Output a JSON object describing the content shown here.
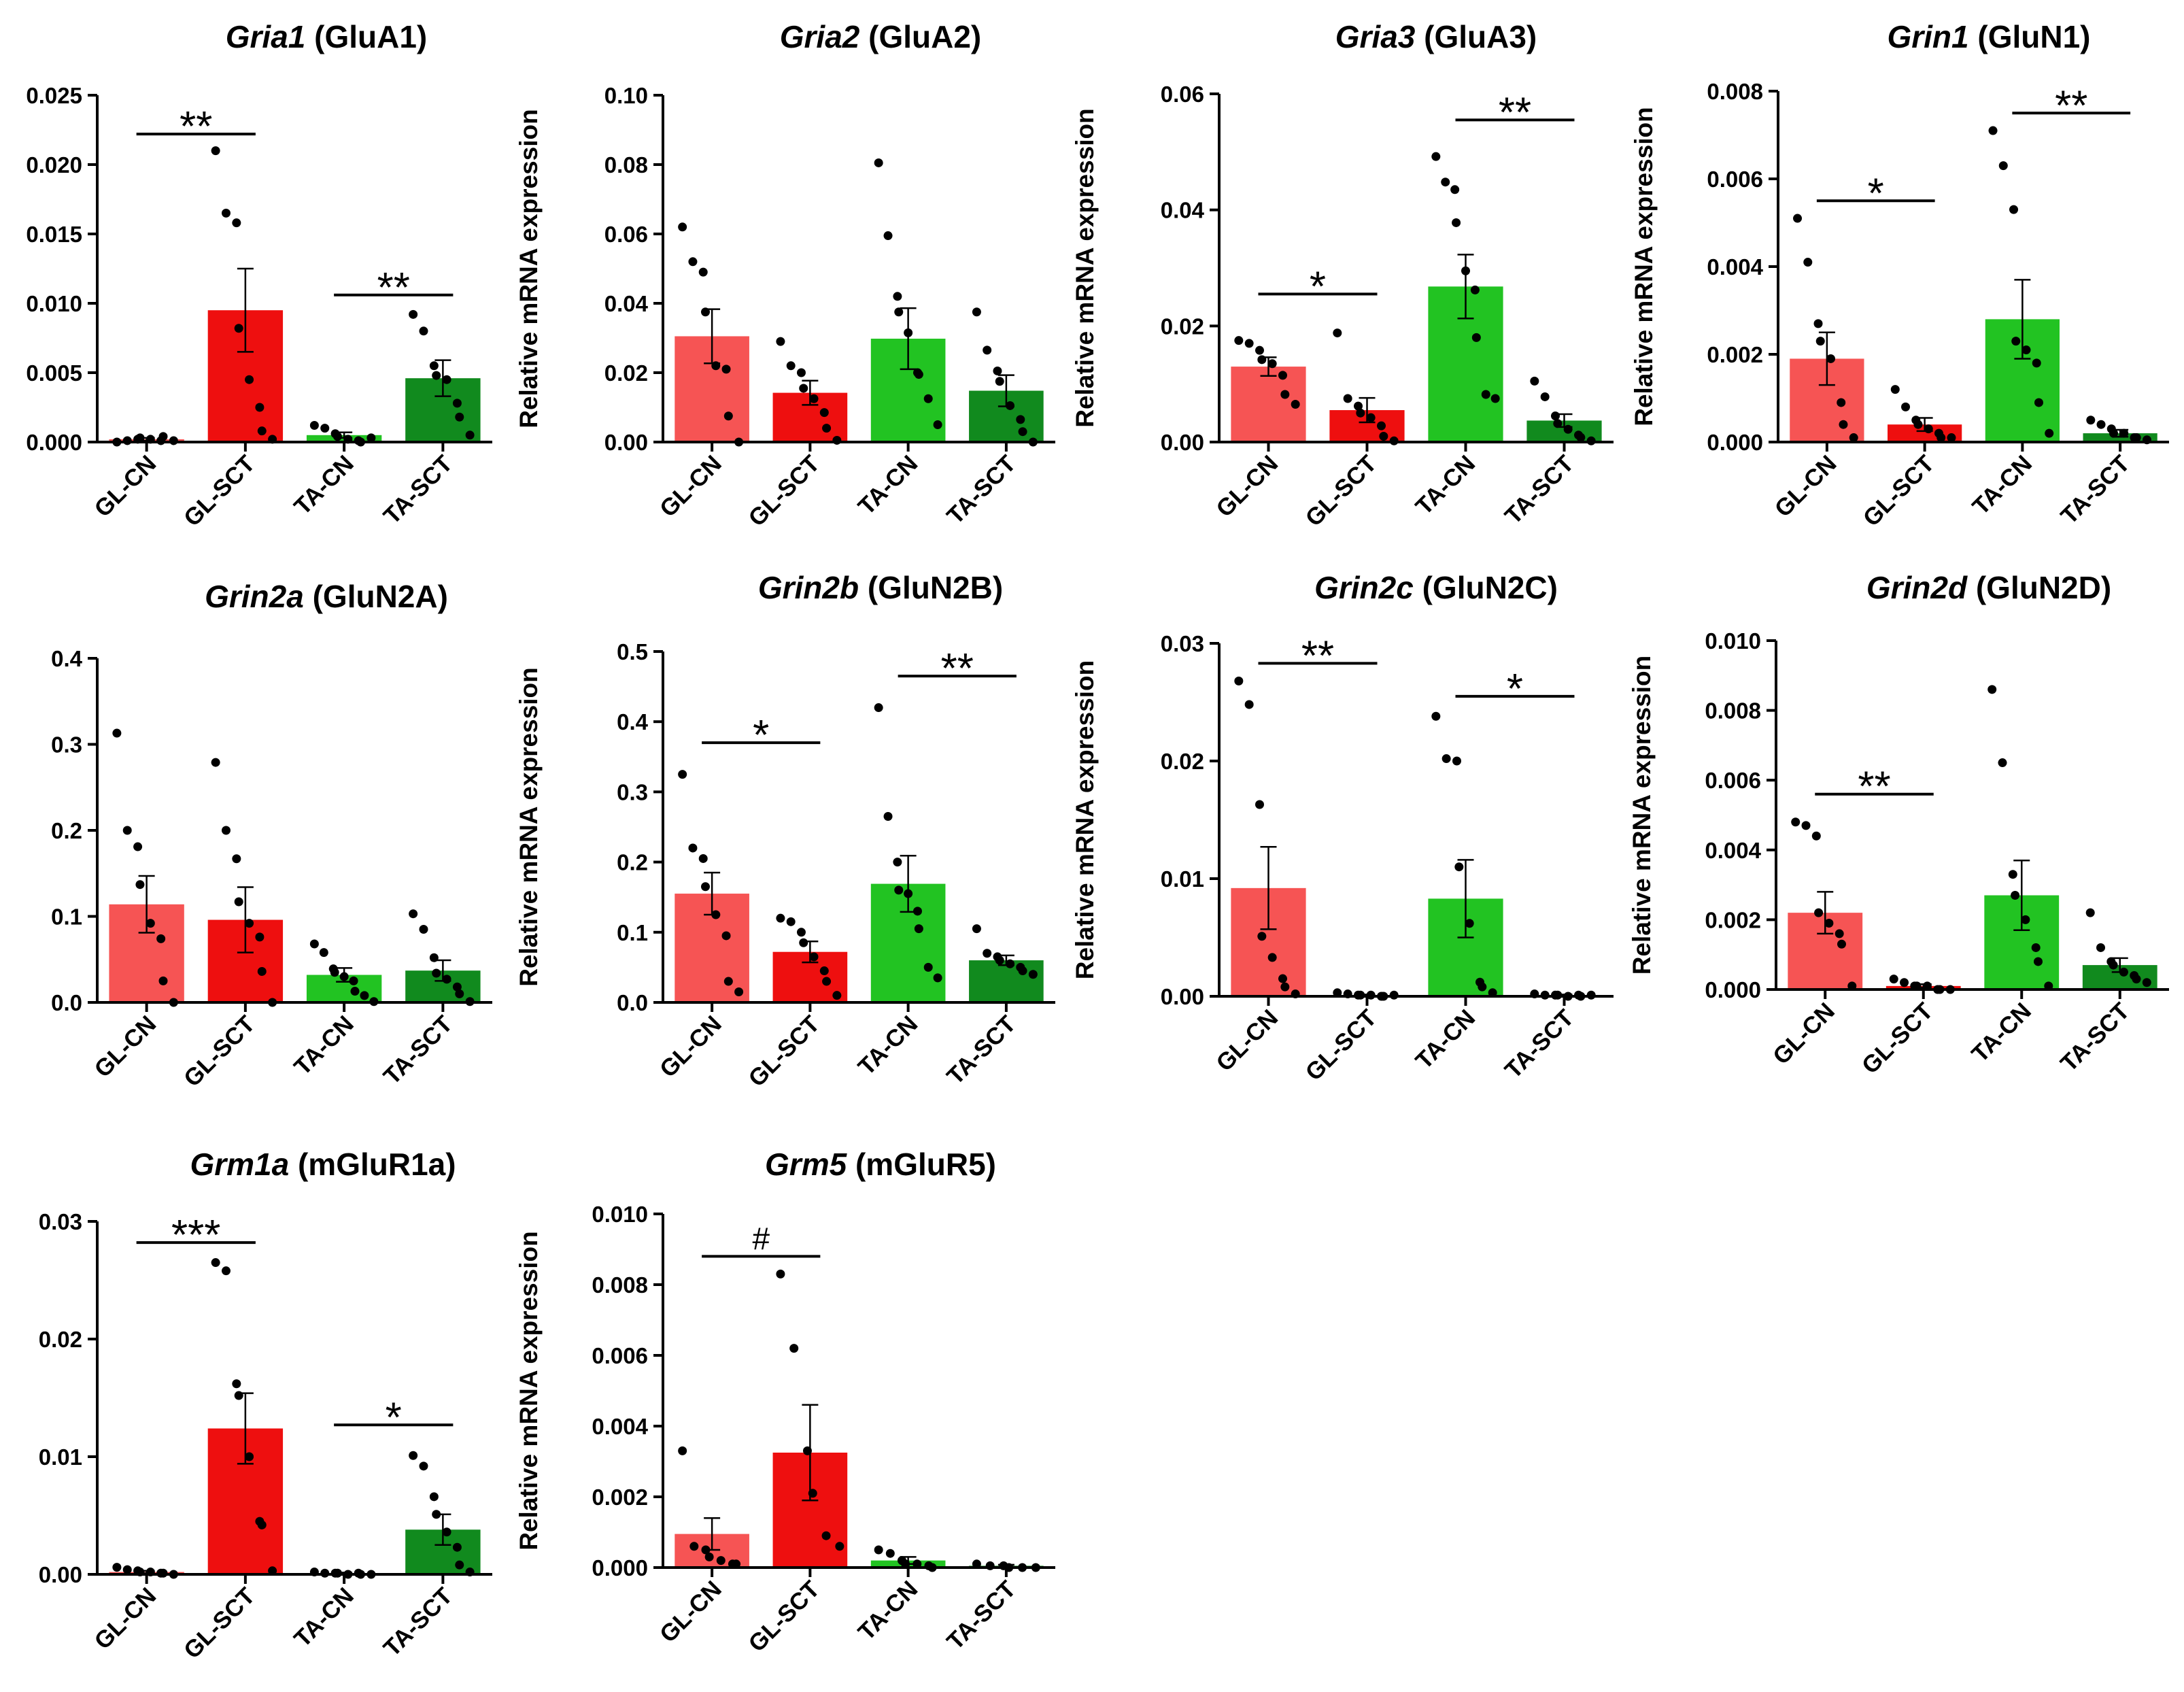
{
  "ylabel": "Relative mRNA expression",
  "colors": {
    "GL-CN": "#f65454",
    "GL-SCT": "#ee0f0f",
    "TA-CN": "#22c322",
    "TA-SCT": "#118a1e",
    "axis": "#000000"
  },
  "chart_data": [
    {
      "type": "bar",
      "gene": "Gria1",
      "protein": "(GluA1)",
      "categories": [
        "GL-CN",
        "GL-SCT",
        "TA-CN",
        "TA-SCT"
      ],
      "values": [
        0.0002,
        0.0095,
        0.0005,
        0.0046
      ],
      "errors": [
        0.0001,
        0.003,
        0.0002,
        0.0013
      ],
      "points": [
        [
          0,
          0.0001,
          0.0002,
          0.0003,
          0.0002,
          0.0001,
          0.0004,
          0.0001
        ],
        [
          0.021,
          0.0165,
          0.0158,
          0.0082,
          0.0045,
          0.0025,
          0.0008,
          0.0002
        ],
        [
          0.0012,
          0.001,
          0.0006,
          0.0004,
          0.0002,
          0.0001,
          0,
          0.0003
        ],
        [
          0.0092,
          0.008,
          0.0055,
          0.0048,
          0.0045,
          0.0028,
          0.0018,
          0.0005
        ]
      ],
      "ylim": [
        0,
        0.025
      ],
      "yticks": [
        "0.000",
        "0.005",
        "0.010",
        "0.015",
        "0.020",
        "0.025"
      ],
      "sig": [
        {
          "from": 0,
          "to": 1,
          "y": 0.0222,
          "label": "**"
        },
        {
          "from": 2,
          "to": 3,
          "y": 0.0106,
          "label": "**"
        }
      ]
    },
    {
      "type": "bar",
      "gene": "Gria2",
      "protein": "(GluA2)",
      "categories": [
        "GL-CN",
        "GL-SCT",
        "TA-CN",
        "TA-SCT"
      ],
      "values": [
        0.0305,
        0.0142,
        0.0298,
        0.0148
      ],
      "errors": [
        0.0078,
        0.0035,
        0.0088,
        0.0045
      ],
      "points": [
        [
          0.062,
          0.052,
          0.049,
          0.0375,
          0.022,
          0.021,
          0.0075,
          0
        ],
        [
          0.029,
          0.022,
          0.02,
          0.0155,
          0.0125,
          0.0085,
          0.004,
          0.0005
        ],
        [
          0.0805,
          0.0595,
          0.042,
          0.0375,
          0.0315,
          0.02,
          0.0195,
          0.0125,
          0.005
        ],
        [
          0.0375,
          0.0265,
          0.0205,
          0.0175,
          0.0105,
          0.0065,
          0.003,
          0
        ]
      ],
      "ylim": [
        0,
        0.1
      ],
      "yticks": [
        "0.00",
        "0.02",
        "0.04",
        "0.06",
        "0.08",
        "0.10"
      ],
      "sig": []
    },
    {
      "type": "bar",
      "gene": "Gria3",
      "protein": "(GluA3)",
      "categories": [
        "GL-CN",
        "GL-SCT",
        "TA-CN",
        "TA-SCT"
      ],
      "values": [
        0.013,
        0.0055,
        0.0268,
        0.0037
      ],
      "errors": [
        0.0016,
        0.0021,
        0.0055,
        0.0011
      ],
      "points": [
        [
          0.0175,
          0.017,
          0.0158,
          0.0142,
          0.0135,
          0.0115,
          0.0082,
          0.0065
        ],
        [
          0.0188,
          0.0075,
          0.0062,
          0.005,
          0.0042,
          0.0028,
          0.001,
          0.0002
        ],
        [
          0.0492,
          0.0448,
          0.0435,
          0.0378,
          0.0295,
          0.0262,
          0.018,
          0.0082,
          0.0075
        ],
        [
          0.0105,
          0.0078,
          0.0045,
          0.0032,
          0.0022,
          0.0012,
          0.0008,
          0.0002
        ]
      ],
      "ylim": [
        0,
        0.06
      ],
      "yticks": [
        "0.00",
        "0.02",
        "0.04",
        "0.06"
      ],
      "sig": [
        {
          "from": 0,
          "to": 1,
          "y": 0.0255,
          "label": "*"
        },
        {
          "from": 2,
          "to": 3,
          "y": 0.0555,
          "label": "**"
        }
      ]
    },
    {
      "type": "bar",
      "gene": "Grin1",
      "protein": "(GluN1)",
      "categories": [
        "GL-CN",
        "GL-SCT",
        "TA-CN",
        "TA-SCT"
      ],
      "values": [
        0.0019,
        0.0004,
        0.0028,
        0.0002
      ],
      "errors": [
        0.0006,
        0.00015,
        0.0009,
        8e-05
      ],
      "points": [
        [
          0.0051,
          0.0041,
          0.0027,
          0.0023,
          0.0019,
          0.0009,
          0.0004,
          0.0001
        ],
        [
          0.0012,
          0.0008,
          0.0005,
          0.0004,
          0.0003,
          0.0002,
          0.0001,
          0.0001
        ],
        [
          0.0071,
          0.0063,
          0.0053,
          0.0023,
          0.0021,
          0.0018,
          0.0009,
          0.0002
        ],
        [
          0.0005,
          0.0004,
          0.0003,
          0.0002,
          0.0002,
          0.0001,
          0.0001,
          5e-05
        ]
      ],
      "ylim": [
        0,
        0.008
      ],
      "yticks": [
        "0.000",
        "0.002",
        "0.004",
        "0.006",
        "0.008"
      ],
      "sig": [
        {
          "from": 0,
          "to": 1,
          "y": 0.0055,
          "label": "*"
        },
        {
          "from": 2,
          "to": 3,
          "y": 0.0075,
          "label": "**"
        }
      ]
    },
    {
      "type": "bar",
      "gene": "Grin2a",
      "protein": "(GluN2A)",
      "categories": [
        "GL-CN",
        "GL-SCT",
        "TA-CN",
        "TA-SCT"
      ],
      "values": [
        0.114,
        0.096,
        0.032,
        0.037
      ],
      "errors": [
        0.033,
        0.038,
        0.008,
        0.012
      ],
      "points": [
        [
          0.313,
          0.2,
          0.181,
          0.137,
          0.092,
          0.074,
          0.025,
          0
        ],
        [
          0.279,
          0.2,
          0.167,
          0.117,
          0.092,
          0.076,
          0.036,
          0
        ],
        [
          0.068,
          0.058,
          0.039,
          0.035,
          0.03,
          0.025,
          0.013,
          0.008,
          0.001
        ],
        [
          0.103,
          0.085,
          0.052,
          0.034,
          0.027,
          0.018,
          0.01,
          0.001
        ]
      ],
      "ylim": [
        0,
        0.4
      ],
      "yticks": [
        "0.0",
        "0.1",
        "0.2",
        "0.3",
        "0.4"
      ],
      "sig": []
    },
    {
      "type": "bar",
      "gene": "Grin2b",
      "protein": "(GluN2B)",
      "categories": [
        "GL-CN",
        "GL-SCT",
        "TA-CN",
        "TA-SCT"
      ],
      "values": [
        0.155,
        0.072,
        0.169,
        0.06
      ],
      "errors": [
        0.03,
        0.015,
        0.04,
        0.007
      ],
      "points": [
        [
          0.325,
          0.22,
          0.205,
          0.165,
          0.125,
          0.095,
          0.03,
          0.015
        ],
        [
          0.12,
          0.115,
          0.1,
          0.085,
          0.065,
          0.045,
          0.03,
          0.01
        ],
        [
          0.42,
          0.265,
          0.2,
          0.16,
          0.155,
          0.13,
          0.105,
          0.05,
          0.035
        ],
        [
          0.105,
          0.07,
          0.065,
          0.06,
          0.055,
          0.05,
          0.045,
          0.04
        ]
      ],
      "ylim": [
        0,
        0.5
      ],
      "yticks": [
        "0.0",
        "0.1",
        "0.2",
        "0.3",
        "0.4",
        "0.5"
      ],
      "sig": [
        {
          "from": 0,
          "to": 1,
          "y": 0.37,
          "label": "*"
        },
        {
          "from": 2,
          "to": 3,
          "y": 0.465,
          "label": "**"
        }
      ]
    },
    {
      "type": "bar",
      "gene": "Grin2c",
      "protein": "(GluN2C)",
      "categories": [
        "GL-CN",
        "GL-SCT",
        "TA-CN",
        "TA-SCT"
      ],
      "values": [
        0.0092,
        0.0001,
        0.0083,
        0.0001
      ],
      "errors": [
        0.0035,
        5e-05,
        0.0033,
        5e-05
      ],
      "points": [
        [
          0.0268,
          0.0248,
          0.0163,
          0.0051,
          0.0033,
          0.0015,
          0.0008,
          0.0002
        ],
        [
          0.0003,
          0.0002,
          0.0001,
          0.0001,
          0.0001,
          0,
          0,
          0.0001
        ],
        [
          0.0238,
          0.0202,
          0.02,
          0.011,
          0.0062,
          0.0012,
          0.0008,
          0.0003
        ],
        [
          0.0002,
          0.0001,
          0.0001,
          0.0001,
          0,
          0.0001,
          0,
          0.0001
        ]
      ],
      "ylim": [
        0,
        0.03
      ],
      "yticks": [
        "0.00",
        "0.01",
        "0.02",
        "0.03"
      ],
      "sig": [
        {
          "from": 0,
          "to": 1,
          "y": 0.0283,
          "label": "**"
        },
        {
          "from": 2,
          "to": 3,
          "y": 0.0255,
          "label": "*"
        }
      ]
    },
    {
      "type": "bar",
      "gene": "Grin2d",
      "protein": "(GluN2D)",
      "categories": [
        "GL-CN",
        "GL-SCT",
        "TA-CN",
        "TA-SCT"
      ],
      "values": [
        0.0022,
        0.0001,
        0.0027,
        0.0007
      ],
      "errors": [
        0.0006,
        5e-05,
        0.001,
        0.0002
      ],
      "points": [
        [
          0.0048,
          0.0047,
          0.0044,
          0.0022,
          0.0019,
          0.0016,
          0.0013,
          0.0001
        ],
        [
          0.0003,
          0.0002,
          0.0001,
          0.0001,
          0.0001,
          0,
          0,
          0
        ],
        [
          0.0086,
          0.0065,
          0.0033,
          0.0027,
          0.002,
          0.0012,
          0.0008,
          0.0001
        ],
        [
          0.0022,
          0.0012,
          0.0008,
          0.0007,
          0.0005,
          0.0004,
          0.0003,
          0.0002
        ]
      ],
      "ylim": [
        0,
        0.01
      ],
      "yticks": [
        "0.000",
        "0.002",
        "0.004",
        "0.006",
        "0.008",
        "0.010"
      ],
      "sig": [
        {
          "from": 0,
          "to": 1,
          "y": 0.0056,
          "label": "**"
        }
      ]
    },
    {
      "type": "bar",
      "gene": "Grm1a",
      "protein": "(mGluR1a)",
      "categories": [
        "GL-CN",
        "GL-SCT",
        "TA-CN",
        "TA-SCT"
      ],
      "values": [
        0.0002,
        0.0124,
        0.0001,
        0.0038
      ],
      "errors": [
        0.0001,
        0.003,
        5e-05,
        0.0013
      ],
      "points": [
        [
          0.0006,
          0.0004,
          0.0003,
          0.0002,
          0.0002,
          0.0001,
          0.0001,
          0
        ],
        [
          0.0265,
          0.0258,
          0.0162,
          0.0152,
          0.01,
          0.0045,
          0.0042,
          0.0003
        ],
        [
          0.0002,
          0.0001,
          0.0001,
          0.0001,
          0,
          0.0001,
          0,
          0
        ],
        [
          0.0101,
          0.0092,
          0.0066,
          0.0051,
          0.0036,
          0.0023,
          0.0008,
          0.0002
        ]
      ],
      "ylim": [
        0,
        0.03
      ],
      "yticks": [
        "0.00",
        "0.01",
        "0.02",
        "0.03"
      ],
      "sig": [
        {
          "from": 0,
          "to": 1,
          "y": 0.0282,
          "label": "***"
        },
        {
          "from": 2,
          "to": 3,
          "y": 0.0127,
          "label": "*"
        }
      ]
    },
    {
      "type": "bar",
      "gene": "Grm5",
      "protein": "(mGluR5)",
      "categories": [
        "GL-CN",
        "GL-SCT",
        "TA-CN",
        "TA-SCT"
      ],
      "values": [
        0.00095,
        0.00325,
        0.0002,
        5e-05
      ],
      "errors": [
        0.00045,
        0.00135,
        0.0001,
        3e-05
      ],
      "points": [
        [
          0.0033,
          0.0006,
          0.0005,
          0.0003,
          0.0002,
          0.0001,
          0.0001
        ],
        [
          0.0083,
          0.0062,
          0.0033,
          0.0021,
          0.0009,
          0.0006
        ],
        [
          0.0005,
          0.0004,
          0.0002,
          0.0001,
          0.0001,
          5e-05,
          0
        ],
        [
          0.0001,
          5e-05,
          5e-05,
          0,
          0,
          0
        ]
      ],
      "ylim": [
        0,
        0.01
      ],
      "yticks": [
        "0.000",
        "0.002",
        "0.004",
        "0.006",
        "0.008",
        "0.010"
      ],
      "sig": [
        {
          "from": 0,
          "to": 1,
          "y": 0.0088,
          "label": "#"
        }
      ]
    }
  ]
}
